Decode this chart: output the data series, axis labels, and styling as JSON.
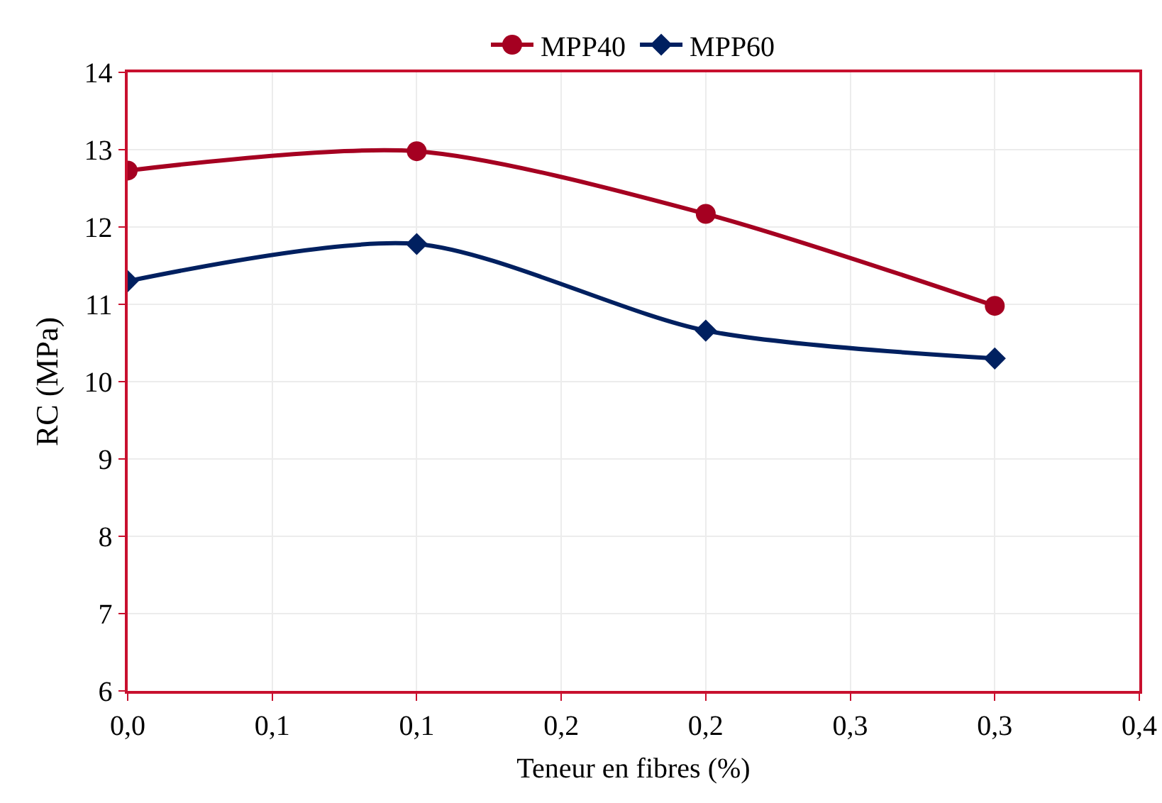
{
  "chart_data": {
    "type": "line",
    "xlabel": "Teneur en fibres (%)",
    "ylabel": "RC (MPa)",
    "x": [
      0,
      0.1,
      0.2,
      0.3
    ],
    "series": [
      {
        "name": "MPP40",
        "color": "#a50021",
        "marker": "circle",
        "values": [
          12.73,
          12.98,
          12.17,
          10.98
        ]
      },
      {
        "name": "MPP60",
        "color": "#002060",
        "marker": "diamond",
        "values": [
          11.3,
          11.78,
          10.66,
          10.3
        ]
      }
    ],
    "xlim": [
      0,
      0.35
    ],
    "xticks": [
      {
        "value": 0,
        "label": "0,0"
      },
      {
        "value": 0.05,
        "label": "0,1"
      },
      {
        "value": 0.1,
        "label": "0,1"
      },
      {
        "value": 0.15,
        "label": "0,2"
      },
      {
        "value": 0.2,
        "label": "0,2"
      },
      {
        "value": 0.25,
        "label": "0,3"
      },
      {
        "value": 0.3,
        "label": "0,3"
      },
      {
        "value": 0.35,
        "label": "0,4"
      }
    ],
    "ylim": [
      6,
      14
    ],
    "yticks": [
      6,
      7,
      8,
      9,
      10,
      11,
      12,
      13,
      14
    ],
    "grid": true,
    "legend": "top"
  }
}
